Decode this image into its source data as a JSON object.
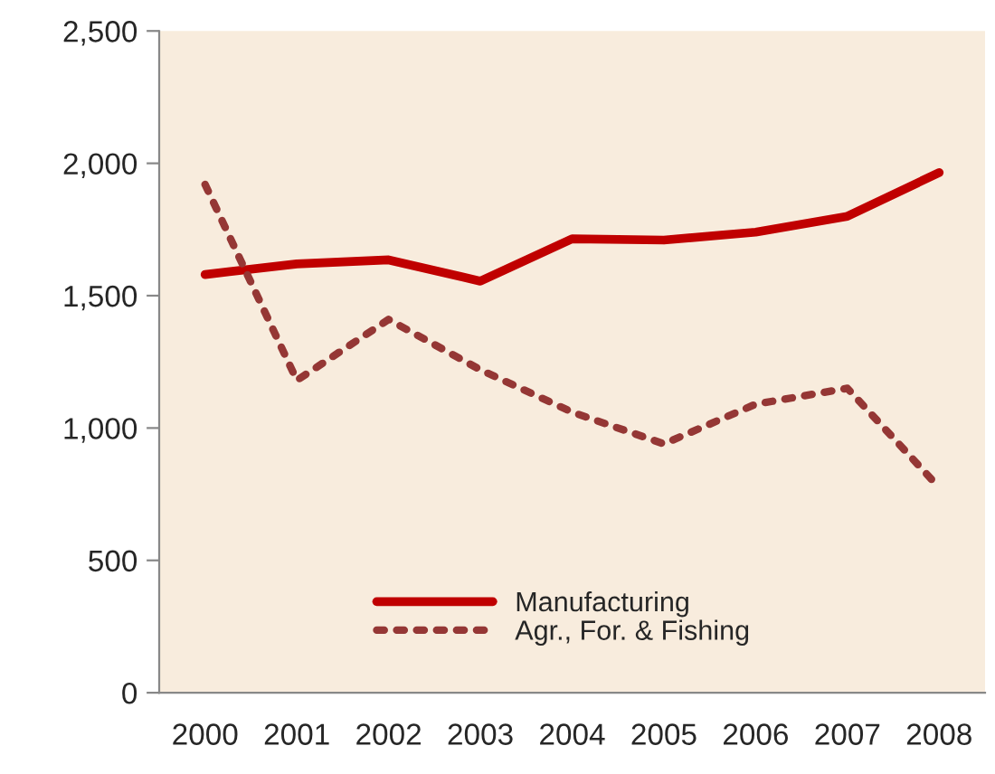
{
  "chart_data": {
    "type": "line",
    "categories": [
      "2000",
      "2001",
      "2002",
      "2003",
      "2004",
      "2005",
      "2006",
      "2007",
      "2008"
    ],
    "series": [
      {
        "name": "Manufacturing",
        "color": "#c00000",
        "line_style": "solid",
        "values": [
          1580,
          1620,
          1635,
          1555,
          1715,
          1710,
          1740,
          1800,
          1965
        ]
      },
      {
        "name": "Agr., For. & Fishing",
        "color": "#953735",
        "line_style": "dotted",
        "values": [
          1920,
          1180,
          1410,
          1220,
          1060,
          940,
          1090,
          1150,
          775
        ]
      }
    ],
    "ylim": [
      0,
      2500
    ],
    "yticks": [
      {
        "value": 0,
        "label": "0"
      },
      {
        "value": 500,
        "label": "500"
      },
      {
        "value": 1000,
        "label": "1,000"
      },
      {
        "value": 1500,
        "label": "1,500"
      },
      {
        "value": 2000,
        "label": "2,000"
      },
      {
        "value": 2500,
        "label": "2,500"
      }
    ],
    "grid": false,
    "legend": "bottom",
    "marker": "none"
  }
}
